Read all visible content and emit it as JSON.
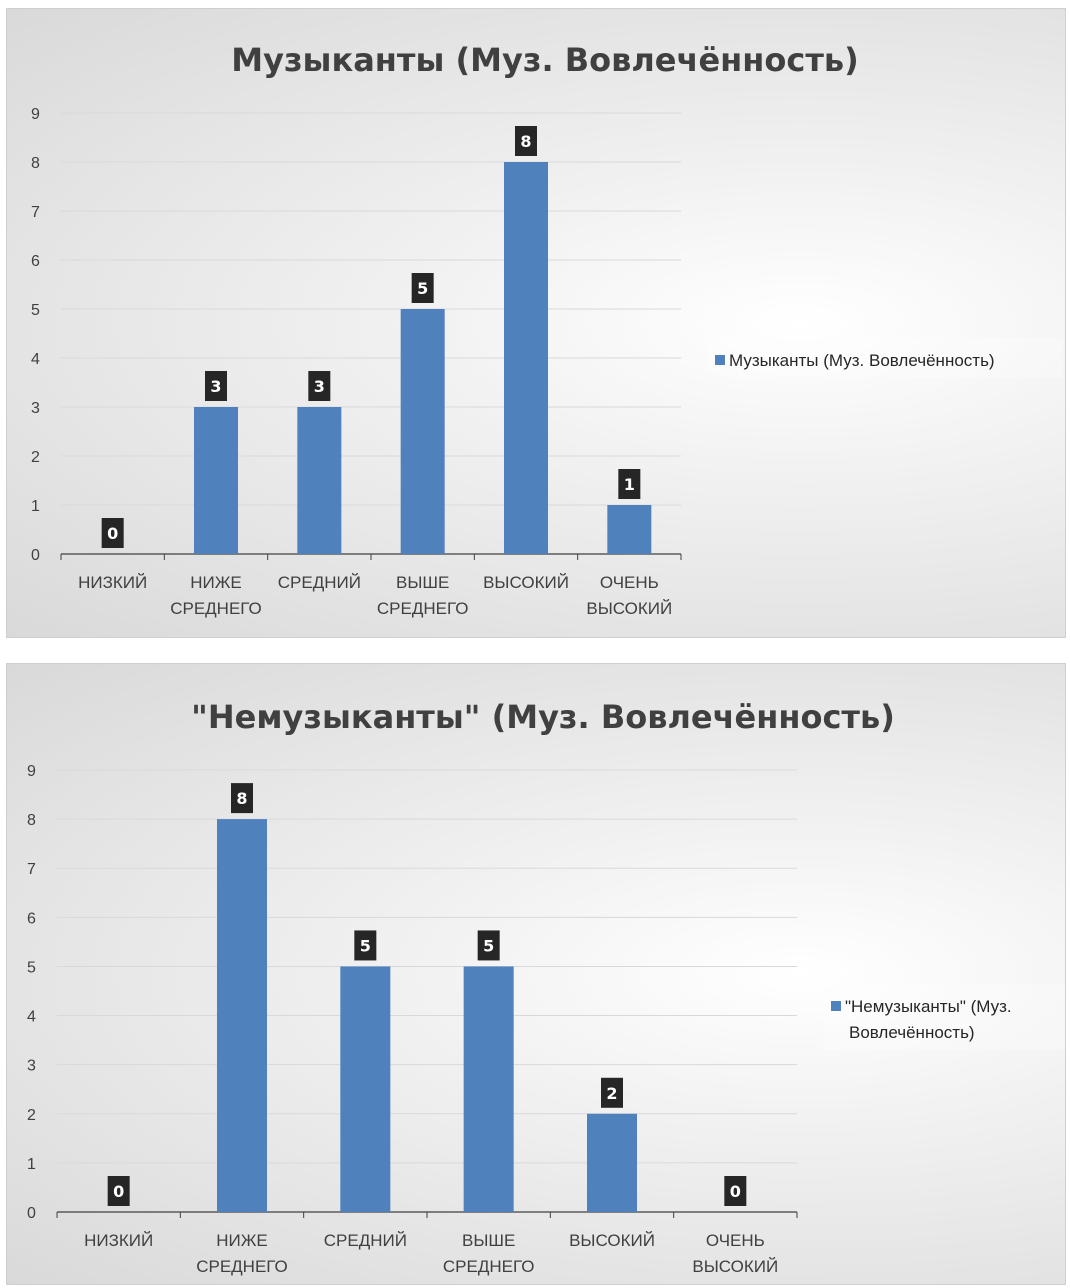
{
  "colors": {
    "bar": "#4f81bd",
    "label_bg": "#262626",
    "grid": "#d9d9d9",
    "axis": "#404040"
  },
  "chart_data": [
    {
      "type": "bar",
      "title": "Музыканты (Муз. Вовлечённость)",
      "categories": [
        "НИЗКИЙ",
        "НИЖЕ СРЕДНЕГО",
        "СРЕДНИЙ",
        "ВЫШЕ СРЕДНЕГО",
        "ВЫСОКИЙ",
        "ОЧЕНЬ ВЫСОКИЙ"
      ],
      "series": [
        {
          "name": "Музыканты (Муз. Вовлечённость)",
          "values": [
            0,
            3,
            3,
            5,
            8,
            1
          ]
        }
      ],
      "xlabel": "",
      "ylabel": "",
      "ylim": [
        0,
        9
      ],
      "yticks": [
        "0",
        "1",
        "2",
        "3",
        "4",
        "5",
        "6",
        "7",
        "8",
        "9"
      ],
      "grid": true,
      "legend": "right",
      "data_labels": true
    },
    {
      "type": "bar",
      "title": "\"Немузыканты\" (Муз. Вовлечённость)",
      "categories": [
        "НИЗКИЙ",
        "НИЖЕ СРЕДНЕГО",
        "СРЕДНИЙ",
        "ВЫШЕ СРЕДНЕГО",
        "ВЫСОКИЙ",
        "ОЧЕНЬ ВЫСОКИЙ"
      ],
      "series": [
        {
          "name": "\"Немузыканты\" (Муз. Вовлечённость)",
          "values": [
            0,
            8,
            5,
            5,
            2,
            0
          ]
        }
      ],
      "xlabel": "",
      "ylabel": "",
      "ylim": [
        0,
        9
      ],
      "yticks": [
        "0",
        "1",
        "2",
        "3",
        "4",
        "5",
        "6",
        "7",
        "8",
        "9"
      ],
      "grid": true,
      "legend": "right",
      "data_labels": true
    }
  ]
}
